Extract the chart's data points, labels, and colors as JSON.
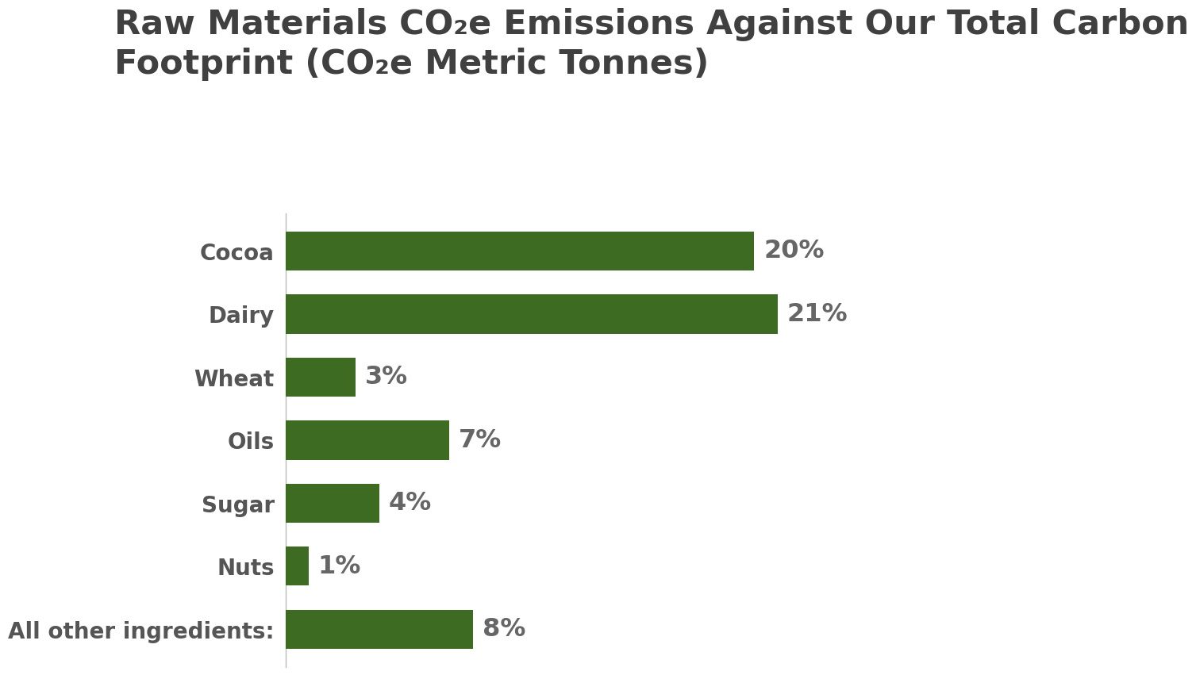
{
  "title_line1": "Raw Materials CO₂e Emissions Against Our Total Carbon",
  "title_line2": "Footprint (CO₂e Metric Tonnes)",
  "categories": [
    "All other ingredients:",
    "Nuts",
    "Sugar",
    "Oils",
    "Wheat",
    "Dairy",
    "Cocoa"
  ],
  "values": [
    8,
    1,
    4,
    7,
    3,
    21,
    20
  ],
  "labels": [
    "8%",
    "1%",
    "4%",
    "7%",
    "3%",
    "21%",
    "20%"
  ],
  "bar_color": "#3d6b22",
  "background_color": "#ffffff",
  "title_color": "#404040",
  "label_color": "#666666",
  "ytick_color": "#555555",
  "bar_height": 0.62,
  "xlim": [
    0,
    26
  ],
  "label_fontsize": 23,
  "ytick_fontsize": 20,
  "title_fontsize": 31
}
